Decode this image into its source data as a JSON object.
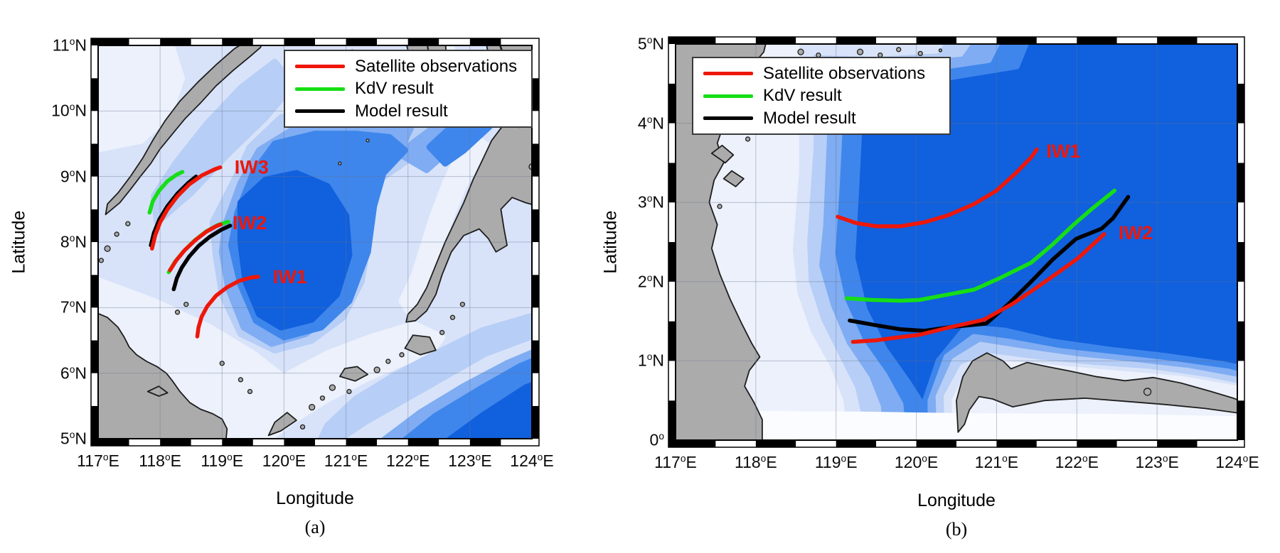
{
  "figure": {
    "background": "#ffffff",
    "legend": {
      "entries": [
        {
          "name": "satellite",
          "label": "Satellite observations",
          "color": "#ee1709"
        },
        {
          "name": "kdv",
          "label": "KdV result",
          "color": "#16de16"
        },
        {
          "name": "model",
          "label": "Model result",
          "color": "#000000"
        }
      ]
    },
    "panels": [
      {
        "id": "a",
        "caption": "(a)",
        "xlabel": "Longitude",
        "ylabel": "Latitude",
        "lon_range": [
          117,
          124
        ],
        "lat_range": [
          5,
          11
        ],
        "x_ticks": [
          {
            "v": 117,
            "label": "117°E"
          },
          {
            "v": 118,
            "label": "118°E"
          },
          {
            "v": 119,
            "label": "119°E"
          },
          {
            "v": 120,
            "label": "120°E"
          },
          {
            "v": 121,
            "label": "121°E"
          },
          {
            "v": 122,
            "label": "122°E"
          },
          {
            "v": 123,
            "label": "123°E"
          },
          {
            "v": 124,
            "label": "124°E"
          }
        ],
        "y_ticks": [
          {
            "v": 5,
            "label": "5°N"
          },
          {
            "v": 6,
            "label": "6°N"
          },
          {
            "v": 7,
            "label": "7°N"
          },
          {
            "v": 8,
            "label": "8°N"
          },
          {
            "v": 9,
            "label": "9°N"
          },
          {
            "v": 10,
            "label": "10°N"
          },
          {
            "v": 11,
            "label": "11°N"
          }
        ],
        "annotations": [
          {
            "text": "IW3",
            "lon": 119.2,
            "lat": 9.12
          },
          {
            "text": "IW2",
            "lon": 119.17,
            "lat": 8.27
          },
          {
            "text": "IW1",
            "lon": 119.82,
            "lat": 7.45
          }
        ]
      },
      {
        "id": "b",
        "caption": "(b)",
        "xlabel": "Longitude",
        "ylabel": "Latitude",
        "lon_range": [
          117,
          124
        ],
        "lat_range": [
          0,
          5
        ],
        "x_ticks": [
          {
            "v": 117,
            "label": "117°E"
          },
          {
            "v": 118,
            "label": "118°E"
          },
          {
            "v": 119,
            "label": "119°E"
          },
          {
            "v": 120,
            "label": "120°E"
          },
          {
            "v": 121,
            "label": "121°E"
          },
          {
            "v": 122,
            "label": "122°E"
          },
          {
            "v": 123,
            "label": "123°E"
          },
          {
            "v": 124,
            "label": "124°E"
          }
        ],
        "y_ticks": [
          {
            "v": 0,
            "label": "0°"
          },
          {
            "v": 1,
            "label": "1°N"
          },
          {
            "v": 2,
            "label": "2°N"
          },
          {
            "v": 3,
            "label": "3°N"
          },
          {
            "v": 4,
            "label": "4°N"
          },
          {
            "v": 5,
            "label": "5°N"
          }
        ],
        "annotations": [
          {
            "text": "IW1",
            "lon": 121.62,
            "lat": 3.63
          },
          {
            "text": "IW2",
            "lon": 122.52,
            "lat": 2.6
          }
        ]
      }
    ]
  },
  "palette": {
    "deep2": "#1160dd",
    "deep1": "#3e86ec",
    "mid": "#7facf2",
    "light2": "#b7cef6",
    "light1": "#d8e3f9",
    "shallow": "#ecf1fc",
    "white": "#fafcff",
    "land": "#ababab",
    "coast": "#1e1e1e",
    "grid": "#64738c",
    "annotation_red": "#ee1709"
  },
  "chart_data": [
    {
      "type": "line",
      "panel": "a",
      "title": "Sulu Sea internal wave crests",
      "xlabel": "Longitude",
      "ylabel": "Latitude",
      "xlim": [
        117,
        124
      ],
      "ylim": [
        5,
        11
      ],
      "legend_position": "northeast",
      "grid": true,
      "series": [
        {
          "wave": "IW3",
          "legend": "KdV result",
          "color": "#16de16",
          "points": [
            [
              117.83,
              8.45
            ],
            [
              117.88,
              8.62
            ],
            [
              117.98,
              8.78
            ],
            [
              118.12,
              8.93
            ],
            [
              118.27,
              9.03
            ],
            [
              118.36,
              9.07
            ]
          ]
        },
        {
          "wave": "IW3",
          "legend": "Model result",
          "color": "#000000",
          "points": [
            [
              117.85,
              7.95
            ],
            [
              117.9,
              8.14
            ],
            [
              117.99,
              8.35
            ],
            [
              118.12,
              8.55
            ],
            [
              118.28,
              8.74
            ],
            [
              118.45,
              8.9
            ],
            [
              118.58,
              9.0
            ]
          ]
        },
        {
          "wave": "IW3",
          "legend": "Satellite observations",
          "color": "#ee1709",
          "points": [
            [
              117.87,
              7.9
            ],
            [
              117.92,
              8.1
            ],
            [
              118.0,
              8.3
            ],
            [
              118.12,
              8.5
            ],
            [
              118.28,
              8.7
            ],
            [
              118.47,
              8.88
            ],
            [
              118.68,
              9.02
            ],
            [
              118.88,
              9.11
            ],
            [
              118.97,
              9.14
            ]
          ]
        },
        {
          "wave": "IW2",
          "legend": "KdV result",
          "color": "#16de16",
          "points": [
            [
              118.14,
              7.54
            ],
            [
              118.24,
              7.7
            ],
            [
              118.38,
              7.86
            ],
            [
              118.55,
              8.02
            ],
            [
              118.74,
              8.16
            ],
            [
              118.93,
              8.26
            ],
            [
              119.1,
              8.31
            ]
          ]
        },
        {
          "wave": "IW2",
          "legend": "Model result",
          "color": "#000000",
          "points": [
            [
              118.22,
              7.28
            ],
            [
              118.27,
              7.45
            ],
            [
              118.35,
              7.61
            ],
            [
              118.47,
              7.78
            ],
            [
              118.62,
              7.94
            ],
            [
              118.8,
              8.08
            ],
            [
              118.99,
              8.19
            ],
            [
              119.13,
              8.25
            ]
          ]
        },
        {
          "wave": "IW2",
          "legend": "Satellite observations",
          "color": "#ee1709",
          "points": [
            [
              118.16,
              7.57
            ],
            [
              118.26,
              7.72
            ],
            [
              118.4,
              7.88
            ],
            [
              118.57,
              8.03
            ],
            [
              118.75,
              8.16
            ],
            [
              118.9,
              8.24
            ],
            [
              118.98,
              8.27
            ]
          ]
        },
        {
          "wave": "IW1",
          "legend": "Satellite observations",
          "color": "#ee1709",
          "points": [
            [
              118.6,
              6.56
            ],
            [
              118.62,
              6.7
            ],
            [
              118.67,
              6.86
            ],
            [
              118.76,
              7.02
            ],
            [
              118.9,
              7.18
            ],
            [
              119.08,
              7.31
            ],
            [
              119.28,
              7.41
            ],
            [
              119.47,
              7.46
            ],
            [
              119.58,
              7.47
            ]
          ]
        }
      ]
    },
    {
      "type": "line",
      "panel": "b",
      "title": "Celebes Sea internal wave crests",
      "xlabel": "Longitude",
      "ylabel": "Latitude",
      "xlim": [
        117,
        124
      ],
      "ylim": [
        0,
        5
      ],
      "legend_position": "northwest",
      "grid": true,
      "series": [
        {
          "wave": "IW1",
          "legend": "Satellite observations",
          "color": "#ee1709",
          "points": [
            [
              119.02,
              2.82
            ],
            [
              119.25,
              2.74
            ],
            [
              119.5,
              2.7
            ],
            [
              119.8,
              2.7
            ],
            [
              120.1,
              2.75
            ],
            [
              120.4,
              2.84
            ],
            [
              120.72,
              2.98
            ],
            [
              121.0,
              3.15
            ],
            [
              121.25,
              3.38
            ],
            [
              121.44,
              3.58
            ],
            [
              121.5,
              3.67
            ]
          ]
        },
        {
          "wave": "IW2",
          "legend": "KdV result",
          "color": "#16de16",
          "points": [
            [
              119.13,
              1.79
            ],
            [
              119.45,
              1.77
            ],
            [
              119.8,
              1.76
            ],
            [
              120.04,
              1.77
            ],
            [
              120.35,
              1.83
            ],
            [
              120.72,
              1.9
            ],
            [
              121.05,
              2.05
            ],
            [
              121.43,
              2.24
            ],
            [
              121.7,
              2.47
            ],
            [
              121.96,
              2.72
            ],
            [
              122.2,
              2.93
            ],
            [
              122.47,
              3.15
            ]
          ]
        },
        {
          "wave": "IW2",
          "legend": "Model result",
          "color": "#000000",
          "points": [
            [
              119.17,
              1.51
            ],
            [
              119.5,
              1.45
            ],
            [
              119.8,
              1.4
            ],
            [
              120.1,
              1.38
            ],
            [
              120.45,
              1.43
            ],
            [
              120.87,
              1.47
            ],
            [
              121.15,
              1.72
            ],
            [
              121.43,
              2.0
            ],
            [
              121.7,
              2.28
            ],
            [
              121.99,
              2.54
            ],
            [
              122.31,
              2.67
            ],
            [
              122.45,
              2.8
            ],
            [
              122.64,
              3.07
            ]
          ]
        },
        {
          "wave": "IW2",
          "legend": "Satellite observations",
          "color": "#ee1709",
          "points": [
            [
              119.21,
              1.24
            ],
            [
              119.5,
              1.26
            ],
            [
              119.8,
              1.3
            ],
            [
              120.04,
              1.33
            ],
            [
              120.4,
              1.42
            ],
            [
              120.84,
              1.52
            ],
            [
              121.2,
              1.72
            ],
            [
              121.52,
              1.94
            ],
            [
              121.8,
              2.14
            ],
            [
              122.02,
              2.3
            ],
            [
              122.34,
              2.6
            ]
          ]
        }
      ]
    }
  ]
}
